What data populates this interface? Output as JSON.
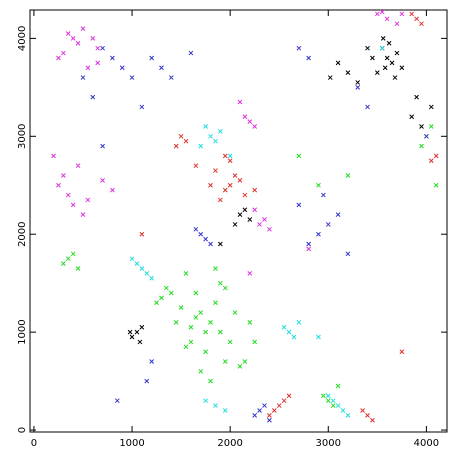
{
  "chart_data": {
    "type": "scatter",
    "xlim": [
      -40,
      4210
    ],
    "ylim": [
      -20,
      4290
    ],
    "xticks": [
      0,
      1000,
      2000,
      3000,
      4000
    ],
    "yticks": [
      0,
      1000,
      2000,
      3000,
      4000
    ],
    "series": [
      {
        "color": "#000000",
        "x": [
          3600,
          3550,
          3650,
          3700,
          3580,
          3620,
          3500,
          3680,
          3450,
          3750,
          3400,
          3300,
          3900,
          3850,
          3200,
          3100,
          3950,
          3020,
          4050,
          3560,
          1050,
          1000,
          1100,
          1080,
          980,
          2100,
          2150,
          2200,
          2050,
          1900
        ],
        "y": [
          3800,
          3900,
          3750,
          3850,
          3700,
          3950,
          3650,
          3600,
          3800,
          3700,
          3900,
          3550,
          3400,
          3200,
          3650,
          3750,
          3100,
          3600,
          3300,
          4000,
          1000,
          950,
          1050,
          900,
          1000,
          2200,
          2250,
          2150,
          2100,
          1900
        ]
      },
      {
        "color": "#e0302a",
        "x": [
          2000,
          1950,
          2050,
          1900,
          2100,
          1850,
          2150,
          2000,
          1800,
          1950,
          2250,
          1500,
          1550,
          1450,
          1650,
          2500,
          2450,
          2550,
          2400,
          2600,
          3400,
          3450,
          3350,
          3900,
          3850,
          3950,
          4100,
          4050,
          1100,
          3750
        ],
        "y": [
          2500,
          2450,
          2600,
          2350,
          2550,
          2650,
          2400,
          2750,
          2500,
          2800,
          2450,
          3000,
          2950,
          2900,
          2700,
          250,
          200,
          300,
          150,
          350,
          150,
          100,
          200,
          4200,
          4250,
          4150,
          2800,
          2750,
          2000,
          800
        ]
      },
      {
        "color": "#22dd22",
        "x": [
          1800,
          1700,
          1900,
          1600,
          2000,
          1750,
          1850,
          1550,
          1650,
          1950,
          2100,
          1500,
          1400,
          1300,
          1700,
          1800,
          1900,
          2200,
          2150,
          1600,
          1550,
          1750,
          2050,
          1450,
          1350,
          1250,
          1850,
          2250,
          1650,
          1950,
          350,
          300,
          400,
          450,
          4000,
          4050,
          3950,
          4100,
          3000,
          2950,
          3050,
          3100,
          2700,
          2900,
          3200
        ],
        "y": [
          1100,
          1200,
          1000,
          1050,
          900,
          800,
          1300,
          850,
          1400,
          700,
          650,
          1250,
          1400,
          1350,
          600,
          500,
          1500,
          1100,
          700,
          900,
          1600,
          1000,
          1200,
          1100,
          1450,
          1300,
          1650,
          900,
          1150,
          1450,
          1750,
          1700,
          1800,
          1650,
          3000,
          3100,
          2900,
          2500,
          300,
          350,
          250,
          450,
          2800,
          2500,
          2600
        ]
      },
      {
        "color": "#3333cc",
        "x": [
          800,
          700,
          900,
          1000,
          600,
          1200,
          1300,
          1400,
          1600,
          1100,
          500,
          700,
          2900,
          3000,
          2800,
          3100,
          2700,
          3200,
          2950,
          1700,
          1650,
          1750,
          1800,
          2300,
          2250,
          2350,
          2400,
          1150,
          1200,
          850,
          2800,
          2700,
          3300,
          3400,
          4000
        ],
        "y": [
          3800,
          3900,
          3700,
          3600,
          3400,
          3800,
          3700,
          3600,
          3850,
          3300,
          3600,
          2900,
          2000,
          2100,
          1900,
          2200,
          2300,
          1800,
          2400,
          2000,
          2050,
          1950,
          1900,
          200,
          150,
          250,
          100,
          500,
          700,
          300,
          3800,
          3900,
          3500,
          3300,
          3000
        ]
      },
      {
        "color": "#22dddd",
        "x": [
          1100,
          1050,
          1150,
          1000,
          1200,
          3100,
          3150,
          3050,
          3200,
          3000,
          2600,
          2550,
          2650,
          2700,
          2900,
          1800,
          1750,
          1850,
          1900,
          1700,
          3550,
          1750,
          2000,
          1950,
          1850
        ],
        "y": [
          1650,
          1700,
          1600,
          1750,
          1550,
          250,
          200,
          300,
          150,
          350,
          1000,
          1050,
          950,
          1100,
          950,
          3000,
          3100,
          2950,
          3050,
          2900,
          3900,
          300,
          2800,
          200,
          250
        ]
      },
      {
        "color": "#dd33dd",
        "x": [
          400,
          350,
          450,
          300,
          500,
          250,
          600,
          550,
          650,
          200,
          300,
          250,
          350,
          400,
          450,
          500,
          700,
          800,
          550,
          2200,
          2150,
          2250,
          2100,
          2300,
          2350,
          2250,
          2400,
          2200,
          3500,
          3600,
          3550,
          3700,
          3750,
          650,
          2800
        ],
        "y": [
          4000,
          4050,
          3950,
          3850,
          4100,
          3800,
          4000,
          3700,
          3900,
          2800,
          2600,
          2500,
          2400,
          2300,
          2700,
          2200,
          2550,
          2450,
          2350,
          3150,
          3200,
          3100,
          3350,
          2100,
          2150,
          2250,
          2050,
          1600,
          4250,
          4200,
          4270,
          4150,
          4250,
          3750,
          1850
        ]
      }
    ]
  }
}
